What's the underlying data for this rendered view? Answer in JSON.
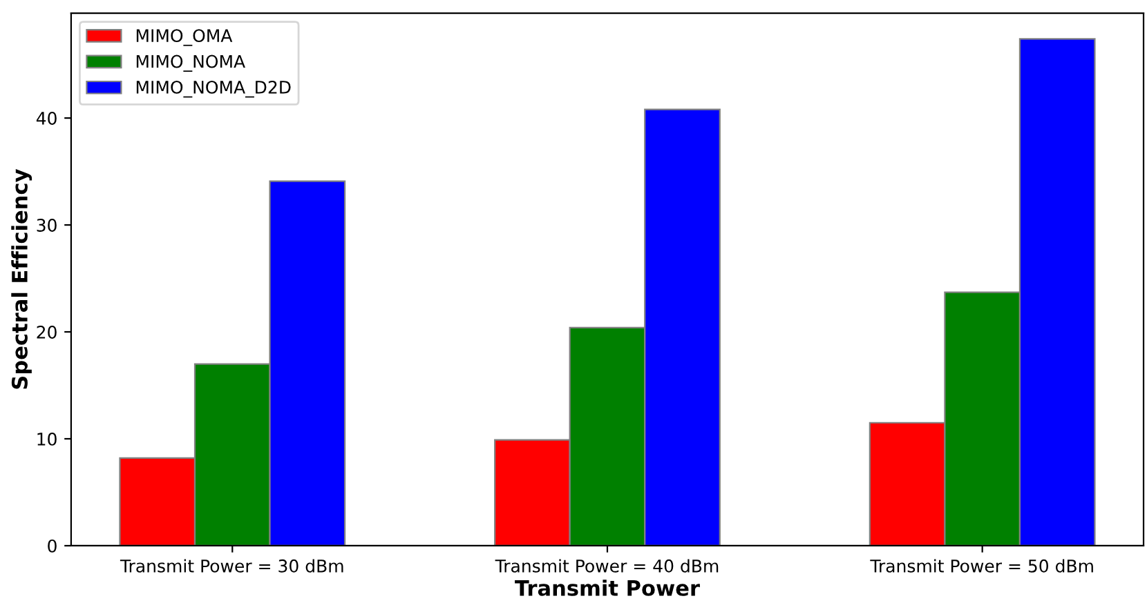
{
  "chart_data": {
    "type": "bar",
    "xlabel": "Transmit Power",
    "ylabel": "Spectral Efficiency",
    "categories": [
      "Transmit Power = 30 dBm",
      "Transmit Power = 40 dBm",
      "Transmit Power = 50 dBm"
    ],
    "series": [
      {
        "name": "MIMO_OMA",
        "color": "#ff0000",
        "values": [
          8.2,
          9.9,
          11.5
        ]
      },
      {
        "name": "MIMO_NOMA",
        "color": "#008000",
        "values": [
          17.0,
          20.4,
          23.7
        ]
      },
      {
        "name": "MIMO_NOMA_D2D",
        "color": "#0000ff",
        "values": [
          34.1,
          40.8,
          47.4
        ]
      }
    ],
    "ylim": [
      0,
      49.8
    ],
    "yticks": [
      0,
      10,
      20,
      30,
      40
    ],
    "grid": false,
    "legend": "top left"
  }
}
